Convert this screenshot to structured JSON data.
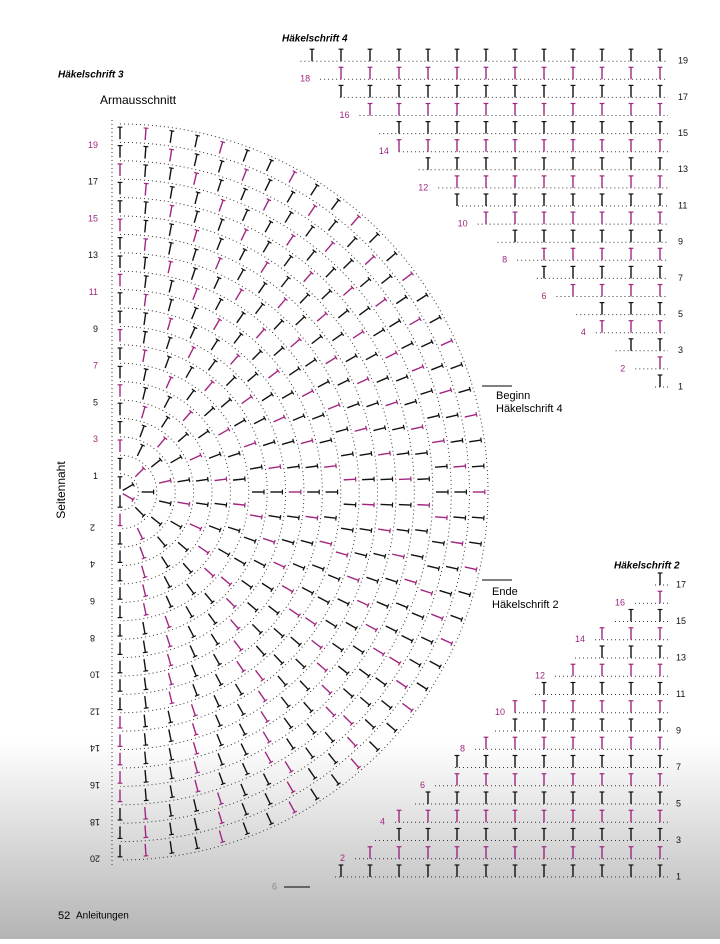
{
  "chart3": {
    "title": "Häkelschrift 3",
    "top_label": "Armausschnitt",
    "side_label": "Seitennaht",
    "rows_up": [
      1,
      3,
      5,
      7,
      9,
      11,
      13,
      15,
      17,
      19
    ],
    "rows_down": [
      2,
      4,
      6,
      8,
      10,
      12,
      14,
      16,
      18,
      20
    ],
    "begin_label": [
      "Beginn",
      "Häkelschrift 4"
    ],
    "end_label": [
      "Ende",
      "Häkelschrift 2"
    ]
  },
  "chart4": {
    "title": "Häkelschrift 4",
    "rows_right": [
      19,
      17,
      15,
      13,
      11,
      9,
      7,
      5,
      3,
      1
    ],
    "rows_left": [
      18,
      16,
      14,
      12,
      10,
      8,
      6,
      4,
      2
    ]
  },
  "chart2": {
    "title": "Häkelschrift 2",
    "rows_right": [
      17,
      15,
      13,
      11,
      9,
      7,
      5,
      3,
      1
    ],
    "rows_left": [
      16,
      14,
      12,
      10,
      8,
      6,
      4,
      2
    ],
    "continue_label": 6
  },
  "footer": {
    "page": "52",
    "section": "Anleitungen"
  }
}
